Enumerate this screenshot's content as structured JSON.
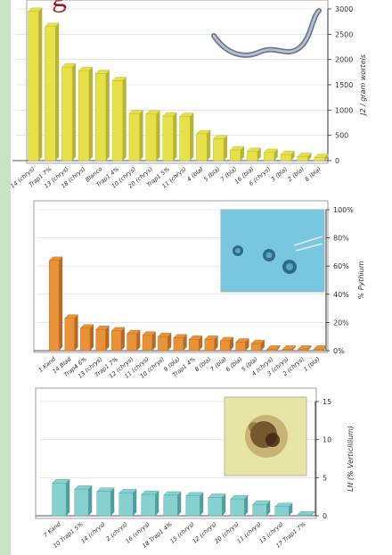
{
  "page": {
    "title_fragment": "g"
  },
  "chart_data": [
    {
      "type": "bar",
      "ylabel": "J2 / gram wortels",
      "ylim": [
        0,
        3000
      ],
      "yticks": [
        0,
        500,
        1000,
        1500,
        2000,
        2500,
        3000
      ],
      "bar_color": "#e6e14a",
      "bar_side_color": "#b8b332",
      "inset": "nematode-photo",
      "categories": [
        "14 (chrys)",
        "Trap1 7%",
        "13 (chrys)",
        "18 (chrys)",
        "Blanco",
        "Trap1 4%",
        "10 (chrys)",
        "20 (chrys)",
        "Trap1 5%",
        "11 (chrys)",
        "4 (bla)",
        "5 (bla)",
        "7 (bla)",
        "16 (bla)",
        "6 (chrys)",
        "3 (bla)",
        "2 (bla)",
        "8 (bla)"
      ],
      "values": [
        2950,
        2650,
        1850,
        1780,
        1720,
        1580,
        930,
        920,
        880,
        870,
        530,
        430,
        210,
        180,
        160,
        120,
        80,
        60
      ]
    },
    {
      "type": "bar",
      "ylabel": "% Pythium",
      "ylim": [
        0,
        100
      ],
      "yticks_labels": [
        "0%",
        "20%",
        "40%",
        "60%",
        "80%",
        "100%"
      ],
      "yticks": [
        0,
        20,
        40,
        60,
        80,
        100
      ],
      "bar_color": "#e8923a",
      "bar_side_color": "#b96a22",
      "inset": "pythium-photo",
      "categories": [
        "1 Kand",
        "14 Blad",
        "Trap4 6%",
        "13 (chrys)",
        "Trap1 7%",
        "12 (chrys)",
        "11 (chrys)",
        "10 (chrys)",
        "9 (bla)",
        "Trap1 4%",
        "8 (bla)",
        "7 (bla)",
        "6 (bla)",
        "5 (bla)",
        "4 (chrys)",
        "3 (chrys)",
        "2 (chrys)",
        "1 (bla)"
      ],
      "values": [
        64,
        23,
        16,
        15,
        14,
        12,
        11,
        10,
        9,
        8,
        8,
        7,
        6,
        5,
        1,
        1,
        1,
        1
      ]
    },
    {
      "type": "bar",
      "ylabel": "LN (% Verticillium)",
      "ylim": [
        0,
        15
      ],
      "yticks": [
        0,
        5,
        10,
        15
      ],
      "bar_color": "#86d0cf",
      "bar_side_color": "#4f9e9d",
      "inset": "verticillium-photo",
      "categories": [
        "7 Kand",
        "10 Trap1 5%",
        "14 (chrys)",
        "2 (chrys)",
        "16 (chrys)",
        "18 Trap1 4%",
        "15 (chrys)",
        "12 (chrys)",
        "20 (chrys)",
        "11 (chrys)",
        "13 (chrys)",
        "17 Trap1 7%"
      ],
      "values": [
        4.3,
        3.5,
        3.2,
        3.0,
        2.8,
        2.7,
        2.6,
        2.4,
        2.2,
        1.5,
        1.2,
        0.1
      ]
    }
  ]
}
